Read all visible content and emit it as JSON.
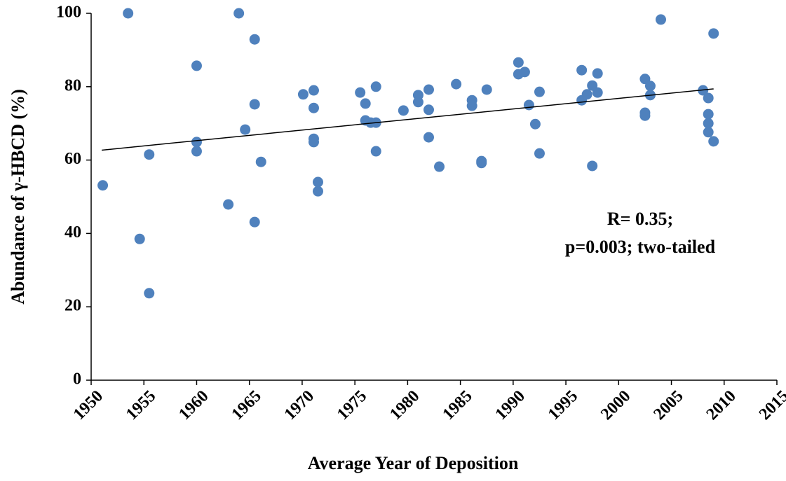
{
  "chart_data": {
    "type": "scatter",
    "xlabel": "Average Year of Deposition",
    "ylabel": "Abundance of γ-HBCD (%)",
    "annotations": [
      "R= 0.35;",
      "p=0.003; two-tailed"
    ],
    "color": "#4f81bd",
    "xlim": [
      1950,
      2015
    ],
    "xticks": [
      1950,
      1955,
      1960,
      1965,
      1970,
      1975,
      1980,
      1985,
      1990,
      1995,
      2000,
      2005,
      2010,
      2015
    ],
    "ylim": [
      0,
      100
    ],
    "yticks": [
      0,
      20,
      40,
      60,
      80,
      100
    ],
    "grid": false,
    "x": [
      1951.1,
      1953.5,
      1954.6,
      1955.5,
      1955.5,
      1960.0,
      1960.0,
      1960.0,
      1963.0,
      1964.0,
      1964.6,
      1965.5,
      1965.5,
      1965.5,
      1966.1,
      1970.1,
      1971.1,
      1971.1,
      1971.1,
      1971.1,
      1971.5,
      1971.5,
      1975.5,
      1976.0,
      1976.0,
      1976.5,
      1977.0,
      1977.0,
      1977.0,
      1979.6,
      1981.0,
      1981.0,
      1982.0,
      1982.0,
      1982.0,
      1983.0,
      1984.6,
      1986.1,
      1986.1,
      1987.0,
      1987.0,
      1987.5,
      1990.5,
      1990.5,
      1991.1,
      1991.5,
      1992.1,
      1992.5,
      1992.5,
      1996.5,
      1996.5,
      1997.0,
      1997.5,
      1997.5,
      1998.0,
      1998.0,
      2002.5,
      2002.5,
      2002.5,
      2003.0,
      2003.0,
      2004.0,
      2008.0,
      2008.5,
      2008.5,
      2008.5,
      2008.5,
      2009.0,
      2009.0
    ],
    "values": [
      53.1,
      100,
      38.5,
      61.5,
      23.7,
      85.7,
      64.9,
      62.4,
      47.9,
      100,
      68.3,
      92.9,
      75.2,
      43.1,
      59.5,
      77.9,
      79.0,
      74.2,
      65.8,
      64.9,
      54.0,
      51.5,
      78.4,
      75.4,
      70.8,
      70.2,
      70.2,
      80.0,
      62.4,
      73.5,
      77.7,
      75.8,
      79.2,
      73.7,
      66.2,
      58.2,
      80.7,
      76.3,
      74.8,
      59.7,
      59.2,
      79.2,
      86.6,
      83.4,
      84.0,
      75.0,
      69.8,
      78.6,
      61.8,
      84.5,
      76.3,
      77.9,
      80.3,
      58.4,
      83.6,
      78.4,
      82.1,
      72.9,
      72.1,
      80.2,
      77.7,
      98.3,
      79.0,
      76.9,
      72.5,
      70.0,
      67.6,
      94.5,
      65.1
    ],
    "trendline": {
      "x": [
        1951,
        2009
      ],
      "y": [
        62.7,
        79.4
      ],
      "color": "#000000"
    }
  }
}
